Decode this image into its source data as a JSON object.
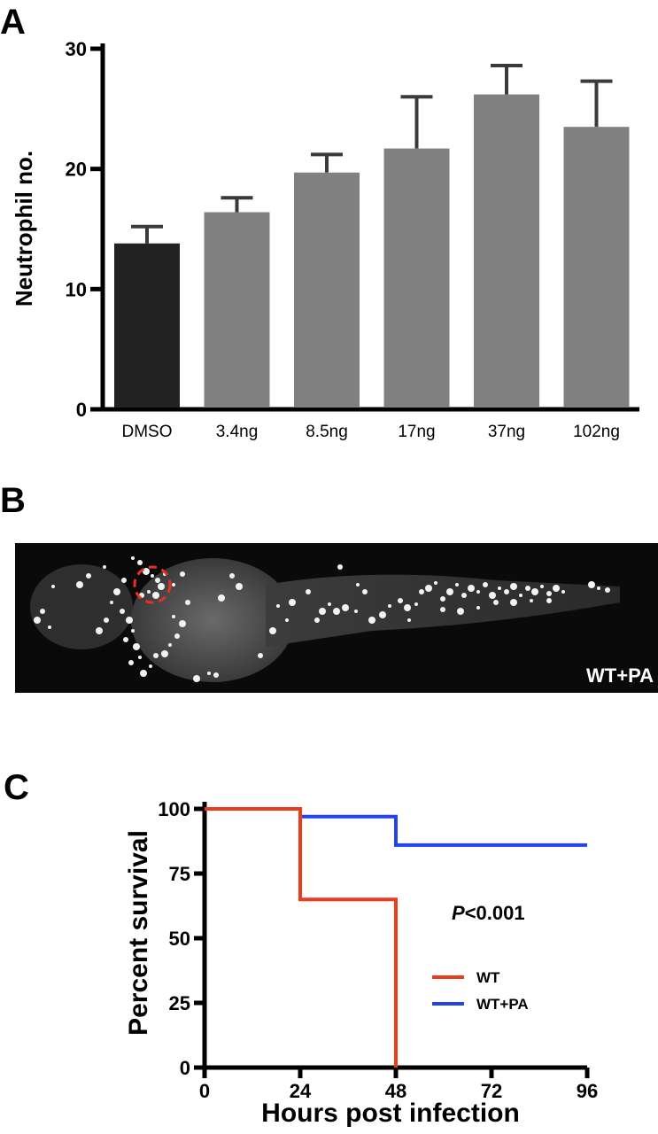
{
  "panels": {
    "a_label": "A",
    "b_label": "B",
    "c_label": "C"
  },
  "image_b": {
    "overlay_label": "WT+PA",
    "marker_color": "#e8321e"
  },
  "chart_data": [
    {
      "type": "bar",
      "categories": [
        "DMSO",
        "3.4ng",
        "8.5ng",
        "17ng",
        "37ng",
        "102ng"
      ],
      "values": [
        13.8,
        16.4,
        19.7,
        21.7,
        26.2,
        23.5
      ],
      "errors": [
        1.4,
        1.2,
        1.5,
        4.3,
        2.4,
        3.8
      ],
      "colors": [
        "#222222",
        "#808080",
        "#808080",
        "#808080",
        "#808080",
        "#808080"
      ],
      "ylabel": "Neutrophil no.",
      "ylim": [
        0,
        30
      ],
      "yticks": [
        0,
        10,
        20,
        30
      ],
      "grid": false
    },
    {
      "type": "line",
      "step": true,
      "series": [
        {
          "name": "WT",
          "color": "#ee3b1e",
          "x": [
            0,
            24,
            24,
            48,
            48
          ],
          "y": [
            100,
            100,
            65,
            65,
            0
          ]
        },
        {
          "name": "WT+PA",
          "color": "#2244ee",
          "x": [
            0,
            24,
            24,
            48,
            48,
            96
          ],
          "y": [
            100,
            100,
            97,
            97,
            86,
            86
          ]
        }
      ],
      "xlabel": "Hours post infection",
      "ylabel": "Percent survival",
      "xlim": [
        0,
        96
      ],
      "ylim": [
        0,
        100
      ],
      "xticks": [
        0,
        24,
        48,
        72,
        96
      ],
      "yticks": [
        0,
        25,
        50,
        75,
        100
      ],
      "annotation_italic": "P",
      "annotation_rest": "<0.001",
      "legend_position": "lower-right",
      "grid": false
    }
  ]
}
